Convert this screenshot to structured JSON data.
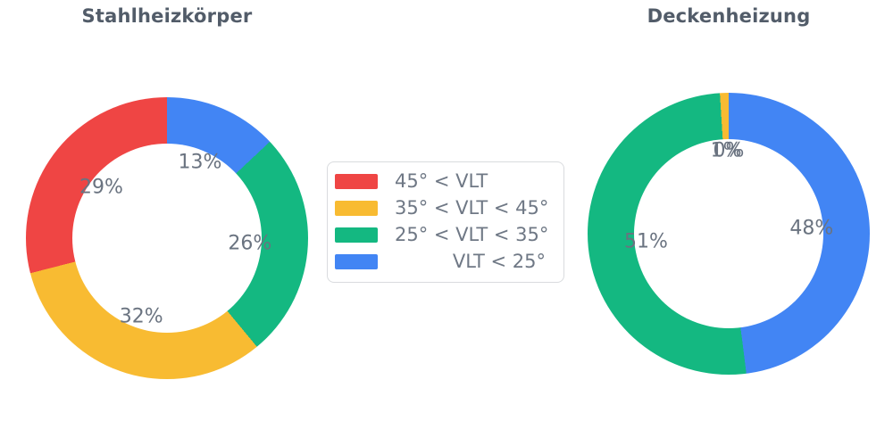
{
  "figure": {
    "background": "#ffffff"
  },
  "palette": {
    "red": "#ef4544",
    "yellow": "#f8bb32",
    "green": "#14b881",
    "blue": "#4285f4",
    "title_text": "#525c69",
    "label_text": "#6a7380",
    "legend_text": "#6f7885",
    "legend_border": "#d9dbde"
  },
  "legend": {
    "items": [
      {
        "label": "45° < VLT",
        "color": "#ef4544"
      },
      {
        "label": "35° < VLT < 45°",
        "color": "#f8bb32"
      },
      {
        "label": "25° < VLT < 35°",
        "color": "#14b881"
      },
      {
        "label": "VLT < 25°",
        "color": "#4285f4"
      }
    ]
  },
  "chart_data": [
    {
      "type": "pie",
      "subtype": "donut",
      "title": "Stahlheizkörper",
      "labels": [
        "45° < VLT",
        "35° < VLT < 45°",
        "25° < VLT < 35°",
        "VLT < 25°"
      ],
      "values": [
        29,
        32,
        26,
        13
      ],
      "colors": [
        "#ef4544",
        "#f8bb32",
        "#14b881",
        "#4285f4"
      ],
      "percent_labels": [
        "29%",
        "32%",
        "26%",
        "13%"
      ],
      "hole_ratio": 0.67,
      "start_angle_deg": 90,
      "direction": "counterclockwise",
      "legend_position": "center-between-charts"
    },
    {
      "type": "pie",
      "subtype": "donut",
      "title": "Deckenheizung",
      "labels": [
        "45° < VLT",
        "35° < VLT < 45°",
        "25° < VLT < 35°",
        "VLT < 25°"
      ],
      "values": [
        0,
        1,
        51,
        48
      ],
      "colors": [
        "#ef4544",
        "#f8bb32",
        "#14b881",
        "#4285f4"
      ],
      "percent_labels": [
        "0%",
        "1%",
        "51%",
        "48%"
      ],
      "hole_ratio": 0.67,
      "start_angle_deg": 90,
      "direction": "counterclockwise",
      "legend_position": "center-between-charts"
    }
  ]
}
